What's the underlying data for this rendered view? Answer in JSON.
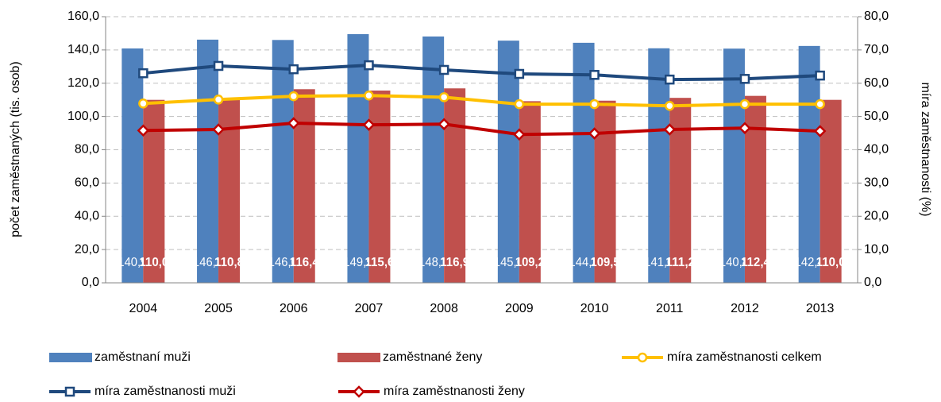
{
  "chart_data": {
    "type": "bar-line",
    "ylabel": "počet zaměstnaných (tis. osob)",
    "y2label": "míra zaměstnanosti (%)",
    "categories": [
      "2004",
      "2005",
      "2006",
      "2007",
      "2008",
      "2009",
      "2010",
      "2011",
      "2012",
      "2013"
    ],
    "ylim": [
      0,
      160
    ],
    "yticks": [
      {
        "value": 0,
        "label": "0,0"
      },
      {
        "value": 20,
        "label": "20,0"
      },
      {
        "value": 40,
        "label": "40,0"
      },
      {
        "value": 60,
        "label": "60,0"
      },
      {
        "value": 80,
        "label": "80,0"
      },
      {
        "value": 100,
        "label": "100,0"
      },
      {
        "value": 120,
        "label": "120,0"
      },
      {
        "value": 140,
        "label": "140,0"
      },
      {
        "value": 160,
        "label": "160,0"
      }
    ],
    "y2lim": [
      0,
      80
    ],
    "y2ticks": [
      {
        "value": 0,
        "label": "0,0"
      },
      {
        "value": 10,
        "label": "10,0"
      },
      {
        "value": 20,
        "label": "20,0"
      },
      {
        "value": 30,
        "label": "30,0"
      },
      {
        "value": 40,
        "label": "40,0"
      },
      {
        "value": 50,
        "label": "50,0"
      },
      {
        "value": 60,
        "label": "60,0"
      },
      {
        "value": 70,
        "label": "70,0"
      },
      {
        "value": 80,
        "label": "80,0"
      }
    ],
    "grid": true,
    "legend": "bottom",
    "series": [
      {
        "name": "zaměstnaní muži",
        "type": "bar",
        "color": "#4f81bd",
        "values": [
          140.9,
          146.2,
          146.0,
          149.5,
          148.1,
          145.6,
          144.3,
          141.0,
          140.8,
          142.4
        ],
        "value_labels": [
          "140,9",
          "146,2",
          "146,0",
          "149,5",
          "148,1",
          "145,6",
          "144,3",
          "141,0",
          "140,8",
          "142,4"
        ]
      },
      {
        "name": "zaměstnané ženy",
        "type": "bar",
        "color": "#c0504d",
        "values": [
          110.0,
          110.8,
          116.4,
          115.6,
          116.9,
          109.2,
          109.5,
          111.2,
          112.4,
          110.0
        ],
        "value_labels": [
          "110,0",
          "110,8",
          "116,4",
          "115,6",
          "116,9",
          "109,2",
          "109,5",
          "111,2",
          "112,4",
          "110,0"
        ]
      },
      {
        "name": "míra zaměstnanosti celkem",
        "type": "line",
        "axis": "y2",
        "color": "#ffc000",
        "marker": "circle",
        "values": [
          53.9,
          55.1,
          56.1,
          56.3,
          55.8,
          53.7,
          53.7,
          53.2,
          53.7,
          53.7
        ]
      },
      {
        "name": "míra zaměstnanosti muži",
        "type": "line",
        "axis": "y2",
        "color": "#1f497d",
        "marker": "square",
        "values": [
          63.0,
          65.2,
          64.2,
          65.4,
          64.0,
          62.8,
          62.5,
          61.1,
          61.3,
          62.3
        ]
      },
      {
        "name": "míra zaměstnanosti ženy",
        "type": "line",
        "axis": "y2",
        "color": "#c00000",
        "marker": "diamond",
        "values": [
          45.8,
          46.1,
          48.0,
          47.5,
          47.7,
          44.6,
          44.9,
          46.1,
          46.5,
          45.6
        ]
      }
    ]
  }
}
